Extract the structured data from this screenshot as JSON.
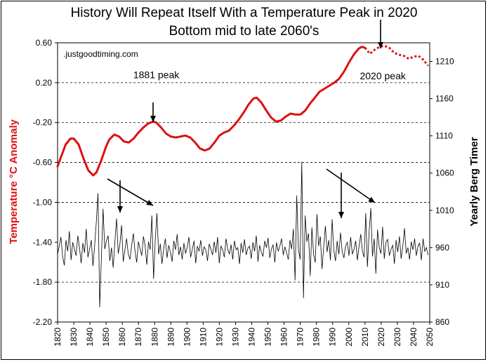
{
  "title_line1": "History Will Repeat Itself With a Temperature Peak in 2020",
  "title_line2": "Bottom mid to late 2060's",
  "watermark": ".justgoodtiming.com",
  "colors": {
    "temperature": "#dd1111",
    "timer": "#000000",
    "grid": "#000000"
  },
  "chart_data": {
    "type": "line",
    "ylabel_left": "Temperature °C Anomaly",
    "ylabel_right": "Yearly Berg Timer",
    "xlim": [
      1820,
      2050
    ],
    "ylim_left": [
      -2.2,
      0.6
    ],
    "ylim_right": [
      860,
      1235
    ],
    "x_ticks": [
      1820,
      1830,
      1840,
      1850,
      1860,
      1870,
      1880,
      1890,
      1900,
      1910,
      1920,
      1930,
      1940,
      1950,
      1960,
      1970,
      1980,
      1990,
      2000,
      2010,
      2020,
      2030,
      2040,
      2050
    ],
    "y_left_ticks": [
      "0.60",
      "0.20",
      "-0.20",
      "-0.60",
      "-1.00",
      "-1.40",
      "-1.80",
      "-2.20"
    ],
    "y_right_ticks": [
      "1210",
      "1160",
      "1110",
      "1060",
      "1010",
      "960",
      "910",
      "860"
    ],
    "gridlines": [
      0.2,
      -0.2,
      -0.6,
      -1.0,
      -1.8
    ],
    "annotations": [
      {
        "text": "1881 peak",
        "x": 1881,
        "y": 0.28
      },
      {
        "text": "2020 peak",
        "x": 2021,
        "y": 0.27
      }
    ],
    "series": [
      {
        "style": "solid",
        "x": [
          1820,
          1822,
          1825,
          1828,
          1830,
          1833,
          1836,
          1839,
          1842,
          1844,
          1847,
          1850,
          1852,
          1855,
          1858,
          1861,
          1864,
          1867,
          1870,
          1873,
          1876,
          1879,
          1881,
          1884,
          1887,
          1890,
          1893,
          1896,
          1899,
          1902,
          1905,
          1908,
          1911,
          1914,
          1917,
          1920,
          1923,
          1926,
          1929,
          1932,
          1935,
          1938,
          1941,
          1943,
          1946,
          1949,
          1952,
          1955,
          1958,
          1961,
          1964,
          1967,
          1970,
          1973,
          1976,
          1979,
          1982,
          1985,
          1988,
          1991,
          1994,
          1997,
          2000,
          2003,
          2006,
          2008,
          2010
        ],
        "y": [
          -0.64,
          -0.55,
          -0.42,
          -0.36,
          -0.36,
          -0.42,
          -0.56,
          -0.68,
          -0.73,
          -0.7,
          -0.58,
          -0.44,
          -0.37,
          -0.32,
          -0.34,
          -0.39,
          -0.4,
          -0.36,
          -0.3,
          -0.25,
          -0.21,
          -0.19,
          -0.2,
          -0.25,
          -0.31,
          -0.34,
          -0.35,
          -0.34,
          -0.33,
          -0.35,
          -0.4,
          -0.46,
          -0.48,
          -0.46,
          -0.4,
          -0.33,
          -0.3,
          -0.28,
          -0.23,
          -0.17,
          -0.1,
          -0.02,
          0.04,
          0.05,
          0.0,
          -0.08,
          -0.15,
          -0.19,
          -0.18,
          -0.14,
          -0.11,
          -0.12,
          -0.12,
          -0.08,
          -0.01,
          0.05,
          0.11,
          0.14,
          0.17,
          0.2,
          0.24,
          0.31,
          0.4,
          0.48,
          0.54,
          0.56,
          0.55
        ]
      },
      {
        "style": "dotted",
        "x": [
          2010,
          2013,
          2016,
          2019,
          2022,
          2025,
          2028,
          2031,
          2034,
          2037,
          2040,
          2043,
          2046,
          2049
        ],
        "y": [
          0.55,
          0.49,
          0.53,
          0.56,
          0.57,
          0.55,
          0.5,
          0.48,
          0.47,
          0.44,
          0.46,
          0.47,
          0.43,
          0.37
        ]
      }
    ],
    "timer_series": {
      "x_start": 1820,
      "x_end": 2049,
      "values": [
        951,
        962,
        974,
        948,
        936,
        970,
        955,
        982,
        943,
        967,
        958,
        949,
        976,
        960,
        939,
        966,
        953,
        985,
        947,
        958,
        970,
        935,
        962,
        995,
        1033,
        880,
        946,
        1012,
        958,
        969,
        976,
        942,
        960,
        933,
        967,
        999,
        952,
        964,
        990,
        941,
        957,
        972,
        951,
        944,
        963,
        979,
        955,
        940,
        968,
        958,
        949,
        975,
        962,
        937,
        968,
        957,
        1003,
        918,
        970,
        1006,
        951,
        965,
        938,
        959,
        972,
        946,
        963,
        954,
        941,
        969,
        957,
        978,
        950,
        961,
        944,
        966,
        952,
        961,
        974,
        947,
        958,
        969,
        939,
        962,
        955,
        970,
        949,
        961,
        957,
        942,
        965,
        958,
        950,
        968,
        953,
        974,
        939,
        962,
        957,
        947,
        972,
        958,
        951,
        964,
        944,
        969,
        957,
        960,
        938,
        966,
        953,
        971,
        950,
        959,
        962,
        945,
        967,
        955,
        976,
        941,
        963,
        954,
        948,
        969,
        960,
        973,
        946,
        958,
        964,
        940,
        967,
        955,
        962,
        972,
        950,
        961,
        953,
        944,
        970,
        958,
        985,
        916,
        1030,
        958,
        944,
        1075,
        892,
        1003,
        968,
        979,
        922,
        987,
        951,
        940,
        1005,
        962,
        975,
        931,
        961,
        989,
        954,
        970,
        943,
        998,
        957,
        942,
        969,
        951,
        980,
        954,
        946,
        962,
        967,
        949,
        974,
        951,
        958,
        969,
        943,
        962,
        978,
        955,
        947,
        1006,
        934,
        981,
        1013,
        948,
        972,
        925,
        984,
        960,
        952,
        988,
        945,
        967,
        971,
        949,
        958,
        963,
        938,
        970,
        954,
        975,
        945,
        962,
        986,
        952,
        960,
        944,
        968,
        957,
        972,
        949,
        962,
        966,
        943,
        972,
        955,
        960,
        950
      ]
    }
  }
}
